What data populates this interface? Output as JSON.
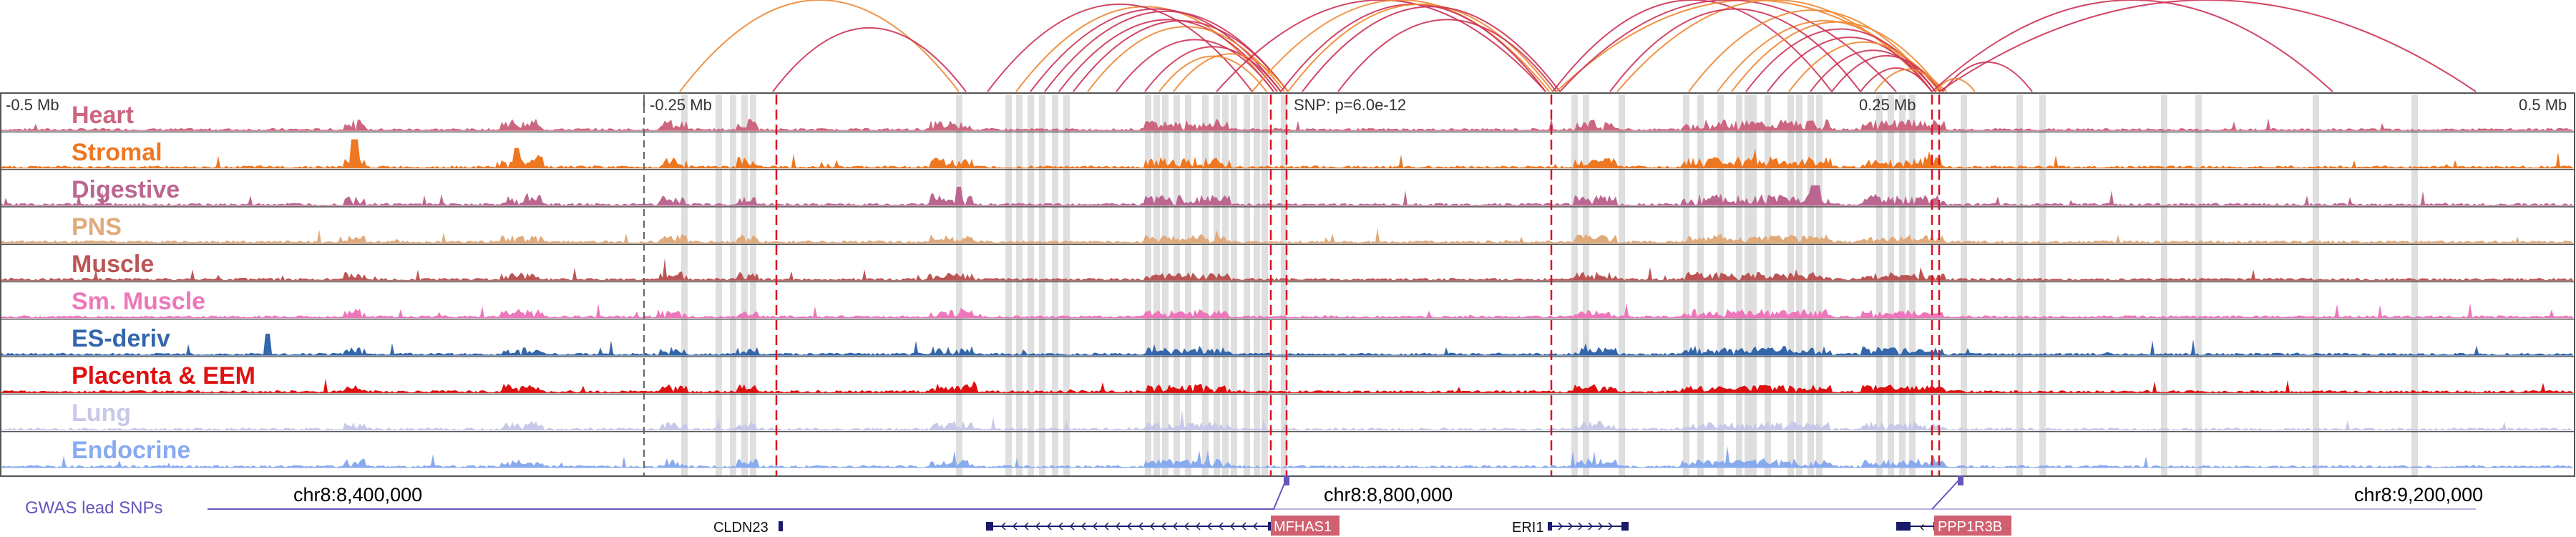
{
  "ruler": {
    "labels": [
      "-0.5 Mb",
      "-0.25 Mb",
      "0.25 Mb",
      "0.5 Mb"
    ],
    "snp_label": "SNP: p=6.0e-12"
  },
  "tracks": [
    {
      "name": "Heart",
      "color": "#cc6680"
    },
    {
      "name": "Stromal",
      "color": "#ee7722"
    },
    {
      "name": "Digestive",
      "color": "#bb6690"
    },
    {
      "name": "PNS",
      "color": "#e0aa7a"
    },
    {
      "name": "Muscle",
      "color": "#bb5555"
    },
    {
      "name": "Sm. Muscle",
      "color": "#ee77bb"
    },
    {
      "name": "ES-deriv",
      "color": "#3366aa"
    },
    {
      "name": "Placenta & EEM",
      "color": "#dd1111"
    },
    {
      "name": "Lung",
      "color": "#c8c8e8"
    },
    {
      "name": "Endocrine",
      "color": "#88aaee"
    }
  ],
  "gwas": {
    "label": "GWAS lead SNPs",
    "color": "#6655bb"
  },
  "coordinates": [
    "chr8:8,400,000",
    "chr8:8,800,000",
    "chr8:9,200,000"
  ],
  "genes": [
    {
      "name": "CLDN23",
      "highlight": false
    },
    {
      "name": "MFHAS1",
      "highlight": true
    },
    {
      "name": "ERI1",
      "highlight": false
    },
    {
      "name": "PPP1R3B",
      "highlight": true
    }
  ],
  "colors": {
    "loop_red": "#cc3355",
    "loop_orange": "#ee8833",
    "snp_line": "#dd1122",
    "highlight_band": "#d9d9d9",
    "gene_highlight_bg": "#d06070",
    "gene_structure": "#1a1a6a"
  }
}
